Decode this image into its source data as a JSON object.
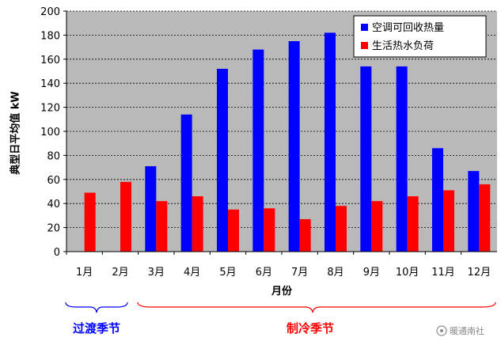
{
  "chart_data": {
    "type": "bar",
    "categories": [
      "1月",
      "2月",
      "3月",
      "4月",
      "5月",
      "6月",
      "7月",
      "8月",
      "9月",
      "10月",
      "11月",
      "12月"
    ],
    "series": [
      {
        "name": "空调可回收热量",
        "values": [
          0,
          0,
          71,
          114,
          152,
          168,
          175,
          182,
          154,
          154,
          86,
          67
        ],
        "color": "#0000FF"
      },
      {
        "name": "生活热水负荷",
        "values": [
          49,
          58,
          42,
          46,
          35,
          36,
          27,
          38,
          42,
          46,
          51,
          56
        ],
        "color": "#FF0000"
      }
    ],
    "xlabel": "月份",
    "ylabel": "典型日平均值 kW",
    "ylim": [
      0,
      200
    ],
    "yticks": [
      0,
      20,
      40,
      60,
      80,
      100,
      120,
      140,
      160,
      180,
      200
    ],
    "grid": "horizontal dashed",
    "legend_position": "top-right",
    "plot_background": "#B9B9B9"
  },
  "annotations": {
    "transition_season": {
      "label": "过渡季节",
      "color": "#0000FF",
      "from": "1月",
      "to": "2月"
    },
    "cooling_season": {
      "label": "制冷季节",
      "color": "#FF0000",
      "from": "3月",
      "to": "12月"
    }
  },
  "watermark": "暖通南社"
}
